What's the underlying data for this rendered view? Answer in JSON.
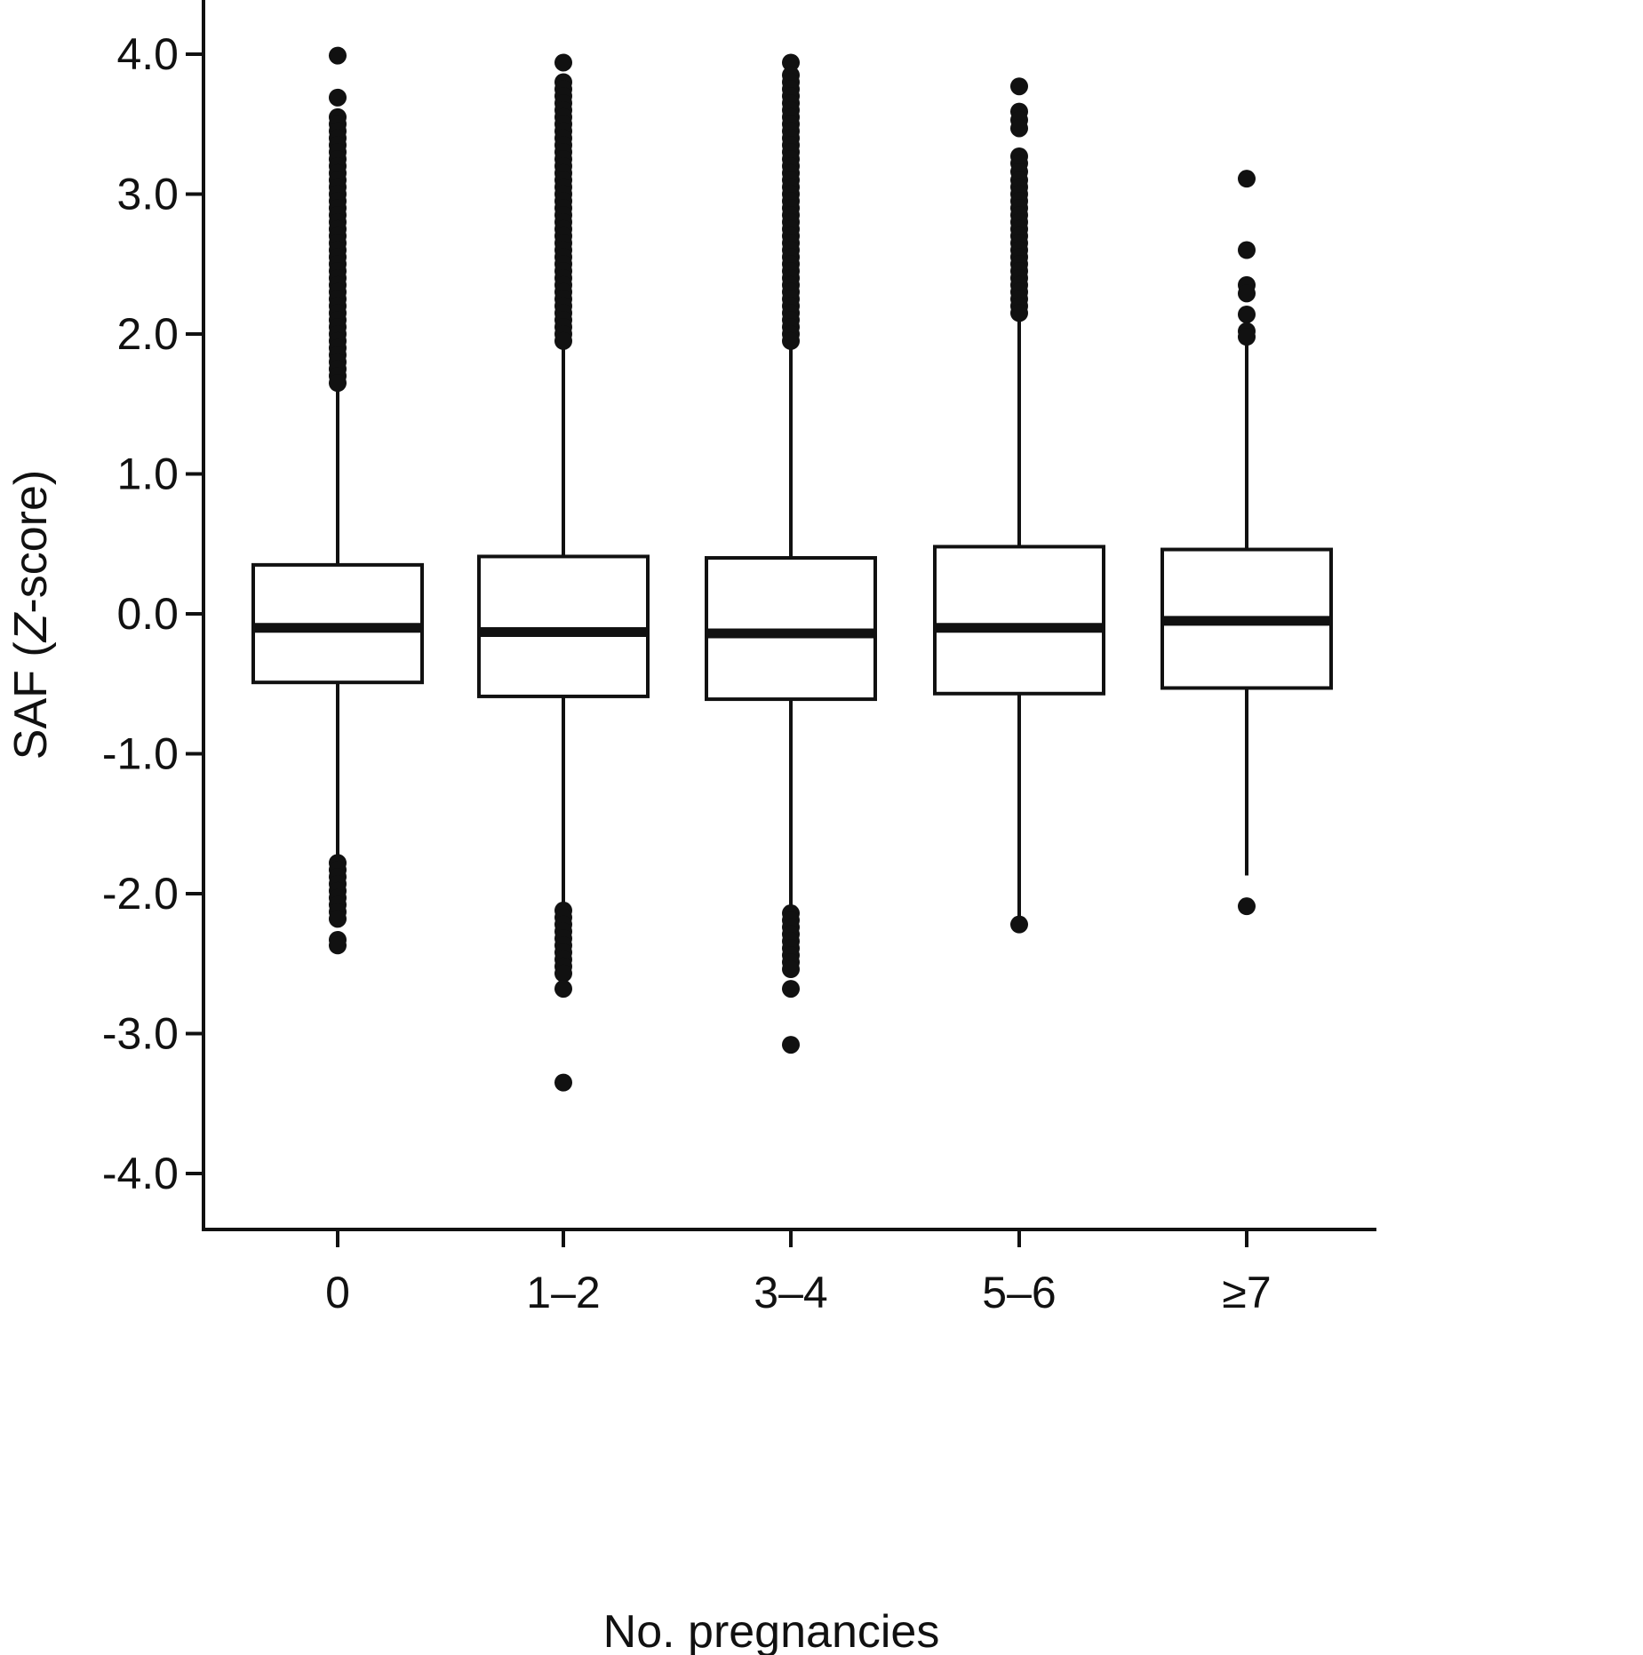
{
  "chart_data": {
    "type": "boxplot",
    "xlabel": "No. pregnancies",
    "ylabel_main": "SAF (",
    "ylabel_italic": "Z",
    "ylabel_rest": "-score)",
    "ylim": [
      -4.4,
      4.4
    ],
    "yticks": [
      -4.0,
      -3.0,
      -2.0,
      -1.0,
      0.0,
      1.0,
      2.0,
      3.0,
      4.0
    ],
    "ytick_labels": [
      "-4.0",
      "-3.0",
      "-2.0",
      "-1.0",
      "0.0",
      "1.0",
      "2.0",
      "3.0",
      "4.0"
    ],
    "categories": [
      "0",
      "1–2",
      "3–4",
      "5–6",
      "≥7"
    ],
    "boxes": [
      {
        "category": "0",
        "q1": -0.49,
        "median": -0.1,
        "q3": 0.35,
        "whisker_low": -1.78,
        "whisker_high": 1.6,
        "outliers": [
          3.99,
          3.69,
          3.55,
          3.5,
          3.45,
          3.4,
          3.35,
          3.3,
          3.25,
          3.2,
          3.15,
          3.1,
          3.05,
          3.0,
          2.95,
          2.9,
          2.85,
          2.8,
          2.75,
          2.7,
          2.65,
          2.6,
          2.55,
          2.5,
          2.45,
          2.4,
          2.35,
          2.3,
          2.25,
          2.2,
          2.15,
          2.1,
          2.05,
          2.0,
          1.95,
          1.9,
          1.85,
          1.8,
          1.75,
          1.7,
          1.65,
          -1.78,
          -1.83,
          -1.88,
          -1.93,
          -1.98,
          -2.03,
          -2.08,
          -2.13,
          -2.18,
          -2.33,
          -2.37
        ]
      },
      {
        "category": "1–2",
        "q1": -0.59,
        "median": -0.13,
        "q3": 0.41,
        "whisker_low": -2.1,
        "whisker_high": 1.9,
        "outliers": [
          3.94,
          3.8,
          3.75,
          3.7,
          3.65,
          3.6,
          3.55,
          3.5,
          3.45,
          3.4,
          3.35,
          3.3,
          3.25,
          3.2,
          3.15,
          3.1,
          3.05,
          3.0,
          2.95,
          2.9,
          2.85,
          2.8,
          2.75,
          2.7,
          2.65,
          2.6,
          2.55,
          2.5,
          2.45,
          2.4,
          2.35,
          2.3,
          2.25,
          2.2,
          2.15,
          2.1,
          2.05,
          2.0,
          1.95,
          -2.12,
          -2.17,
          -2.22,
          -2.27,
          -2.32,
          -2.37,
          -2.42,
          -2.47,
          -2.52,
          -2.57,
          -2.68,
          -3.35
        ]
      },
      {
        "category": "3–4",
        "q1": -0.61,
        "median": -0.14,
        "q3": 0.4,
        "whisker_low": -2.12,
        "whisker_high": 1.9,
        "outliers": [
          3.94,
          3.85,
          3.8,
          3.75,
          3.7,
          3.65,
          3.6,
          3.55,
          3.5,
          3.45,
          3.4,
          3.35,
          3.3,
          3.25,
          3.2,
          3.15,
          3.1,
          3.05,
          3.0,
          2.95,
          2.9,
          2.85,
          2.8,
          2.75,
          2.7,
          2.65,
          2.6,
          2.55,
          2.5,
          2.45,
          2.4,
          2.35,
          2.3,
          2.25,
          2.2,
          2.15,
          2.1,
          2.05,
          2.0,
          1.95,
          -2.14,
          -2.19,
          -2.24,
          -2.29,
          -2.34,
          -2.39,
          -2.44,
          -2.49,
          -2.54,
          -2.68,
          -3.08
        ]
      },
      {
        "category": "5–6",
        "q1": -0.57,
        "median": -0.1,
        "q3": 0.48,
        "whisker_low": -2.22,
        "whisker_high": 2.1,
        "outliers": [
          3.77,
          3.59,
          3.53,
          3.47,
          3.27,
          3.22,
          3.16,
          3.1,
          3.05,
          3.0,
          2.95,
          2.9,
          2.85,
          2.8,
          2.75,
          2.7,
          2.65,
          2.6,
          2.55,
          2.5,
          2.45,
          2.4,
          2.35,
          2.3,
          2.25,
          2.2,
          2.15,
          -2.22
        ]
      },
      {
        "category": "≥7",
        "q1": -0.53,
        "median": -0.05,
        "q3": 0.46,
        "whisker_low": -1.87,
        "whisker_high": 1.95,
        "outliers": [
          3.11,
          2.6,
          2.35,
          2.29,
          2.14,
          2.02,
          1.98,
          -2.09
        ]
      }
    ]
  }
}
